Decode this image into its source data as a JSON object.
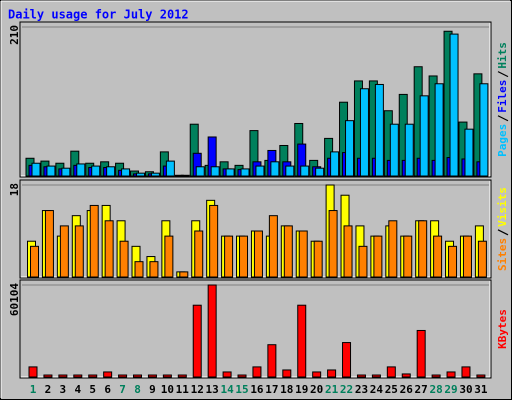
{
  "chart_data": [
    {
      "type": "bar",
      "title": "Daily usage for July 2012",
      "ylim": [
        0,
        210
      ],
      "yticks": [
        210
      ],
      "series": [
        {
          "name": "Hits",
          "color": "#00805c",
          "values": [
            25,
            21,
            18,
            35,
            18,
            20,
            18,
            7,
            6,
            34,
            1,
            73,
            15,
            20,
            15,
            64,
            22,
            43,
            74,
            22,
            53,
            104,
            134,
            134,
            92,
            115,
            154,
            141,
            204,
            76,
            144
          ]
        },
        {
          "name": "Files",
          "color": "#0000ff",
          "values": [
            15,
            13,
            10,
            15,
            12,
            12,
            8,
            3,
            3,
            14,
            0,
            32,
            55,
            10,
            9,
            20,
            36,
            20,
            45,
            13,
            25,
            33,
            25,
            25,
            22,
            22,
            25,
            22,
            26,
            24,
            20
          ]
        },
        {
          "name": "Pages",
          "color": "#00c0ff",
          "values": [
            18,
            14,
            11,
            17,
            14,
            13,
            10,
            4,
            4,
            21,
            1,
            13,
            13,
            10,
            10,
            14,
            20,
            14,
            14,
            11,
            34,
            78,
            123,
            129,
            73,
            73,
            113,
            130,
            200,
            66,
            130
          ]
        }
      ]
    },
    {
      "type": "bar",
      "ylim": [
        0,
        18
      ],
      "yticks": [
        18
      ],
      "series": [
        {
          "name": "Visits",
          "color": "#ffff00",
          "values": [
            7,
            13,
            8,
            12,
            13,
            14,
            11,
            6,
            4,
            11,
            1,
            11,
            15,
            8,
            8,
            9,
            8,
            10,
            9,
            7,
            18,
            16,
            10,
            8,
            10,
            8,
            11,
            11,
            7,
            8,
            10
          ]
        },
        {
          "name": "Sites",
          "color": "#ff8000",
          "values": [
            6,
            13,
            10,
            10,
            14,
            11,
            7,
            3,
            3,
            8,
            1,
            9,
            14,
            8,
            8,
            9,
            12,
            10,
            9,
            7,
            13,
            10,
            6,
            8,
            11,
            8,
            11,
            8,
            6,
            8,
            7
          ]
        }
      ]
    },
    {
      "type": "bar",
      "ylim": [
        0,
        60104
      ],
      "yticks": [
        60104
      ],
      "categories": [
        "1",
        "2",
        "3",
        "4",
        "5",
        "6",
        "7",
        "8",
        "9",
        "10",
        "11",
        "12",
        "13",
        "14",
        "15",
        "16",
        "17",
        "18",
        "19",
        "20",
        "21",
        "22",
        "23",
        "24",
        "25",
        "26",
        "27",
        "28",
        "29",
        "30",
        "31"
      ],
      "category_colors": [
        "#00805c",
        "#000000",
        "#000000",
        "#000000",
        "#000000",
        "#000000",
        "#00805c",
        "#00805c",
        "#000000",
        "#000000",
        "#000000",
        "#000000",
        "#000000",
        "#00805c",
        "#00805c",
        "#000000",
        "#000000",
        "#000000",
        "#000000",
        "#000000",
        "#00805c",
        "#00805c",
        "#000000",
        "#000000",
        "#000000",
        "#000000",
        "#000000",
        "#00805c",
        "#00805c",
        "#000000",
        "#000000"
      ],
      "series": [
        {
          "name": "KBytes",
          "color": "#ff0000",
          "values": [
            6600,
            1300,
            1300,
            1300,
            1300,
            3300,
            1300,
            1300,
            1300,
            1300,
            1300,
            46900,
            60104,
            3300,
            1300,
            6600,
            21100,
            4600,
            46900,
            3300,
            4600,
            22500,
            1300,
            1300,
            6600,
            2000,
            30400,
            1300,
            3300,
            6600,
            1300
          ]
        }
      ]
    }
  ]
}
